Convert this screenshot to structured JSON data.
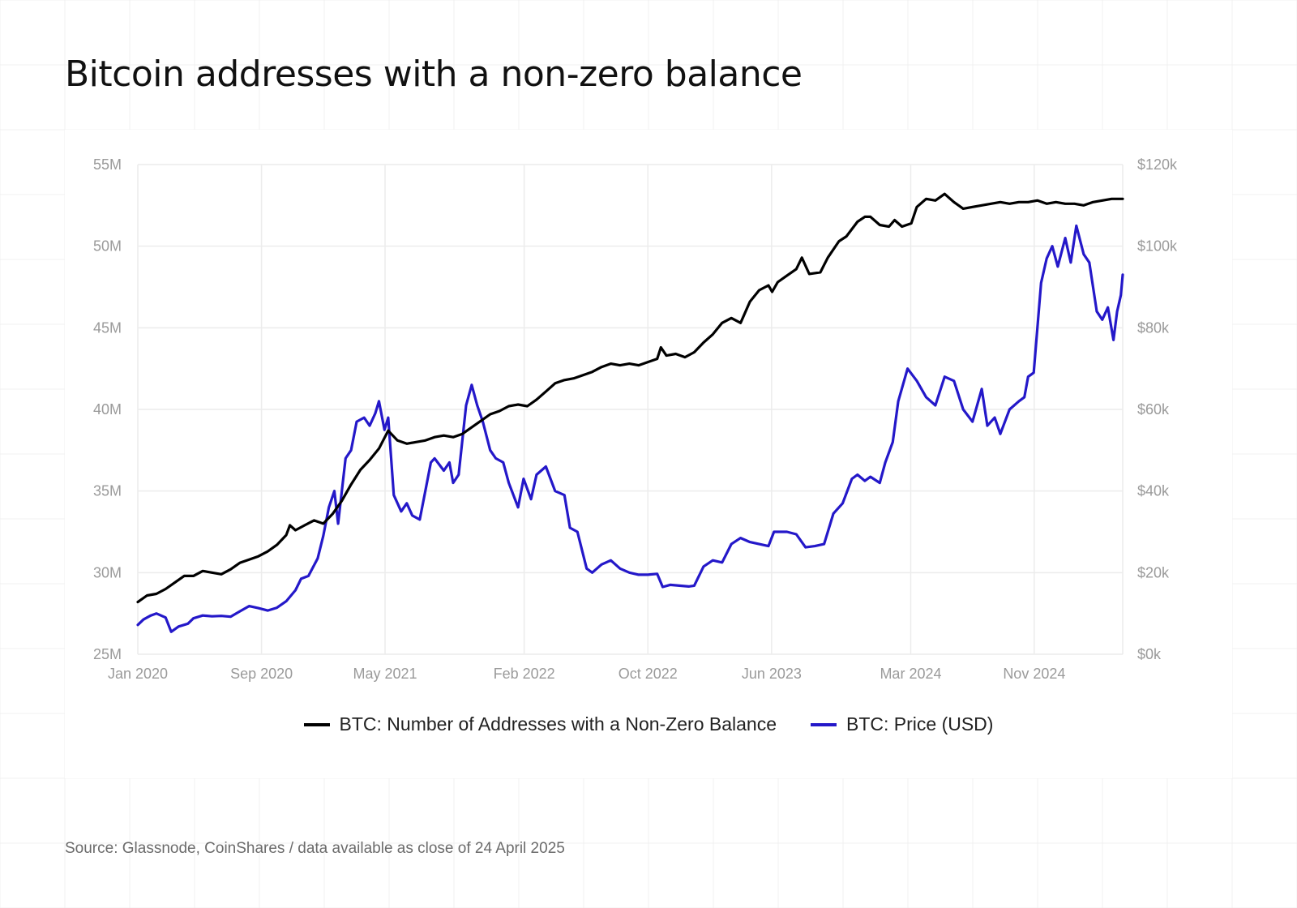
{
  "title": "Bitcoin addresses with a non-zero balance",
  "source": "Source: Glassnode, CoinShares / data available as close of 24 April 2025",
  "chart_data": {
    "type": "line",
    "title": "Bitcoin addresses with a non-zero balance",
    "x_ticks": [
      "Jan 2020",
      "Sep 2020",
      "May 2021",
      "Feb 2022",
      "Oct 2022",
      "Jun 2023",
      "Mar 2024",
      "Nov 2024"
    ],
    "x_tick_positions": [
      2020.0,
      2020.667,
      2021.333,
      2022.083,
      2022.75,
      2023.417,
      2024.167,
      2024.833
    ],
    "xlim": [
      2020.0,
      2025.31
    ],
    "y_left": {
      "ticks": [
        "25M",
        "30M",
        "35M",
        "40M",
        "45M",
        "50M",
        "55M"
      ],
      "ylim": [
        25,
        55
      ]
    },
    "y_right": {
      "ticks": [
        "$0k",
        "$20k",
        "$40k",
        "$60k",
        "$80k",
        "$100k",
        "$120k"
      ],
      "ylim": [
        0,
        120
      ]
    },
    "grid": true,
    "legend_position": "bottom",
    "series": [
      {
        "name": "BTC: Number of Addresses with a Non-Zero Balance",
        "axis": "left",
        "unit": "M",
        "color": "#000000",
        "points": [
          [
            2020.0,
            28.2
          ],
          [
            2020.05,
            28.6
          ],
          [
            2020.1,
            28.7
          ],
          [
            2020.15,
            29.0
          ],
          [
            2020.2,
            29.4
          ],
          [
            2020.25,
            29.8
          ],
          [
            2020.3,
            29.8
          ],
          [
            2020.35,
            30.1
          ],
          [
            2020.4,
            30.0
          ],
          [
            2020.45,
            29.9
          ],
          [
            2020.5,
            30.2
          ],
          [
            2020.55,
            30.6
          ],
          [
            2020.6,
            30.8
          ],
          [
            2020.65,
            31.0
          ],
          [
            2020.7,
            31.3
          ],
          [
            2020.75,
            31.7
          ],
          [
            2020.8,
            32.3
          ],
          [
            2020.82,
            32.9
          ],
          [
            2020.85,
            32.6
          ],
          [
            2020.9,
            32.9
          ],
          [
            2020.95,
            33.2
          ],
          [
            2021.0,
            33.0
          ],
          [
            2021.05,
            33.6
          ],
          [
            2021.1,
            34.4
          ],
          [
            2021.15,
            35.4
          ],
          [
            2021.2,
            36.3
          ],
          [
            2021.25,
            36.9
          ],
          [
            2021.3,
            37.6
          ],
          [
            2021.35,
            38.7
          ],
          [
            2021.4,
            38.1
          ],
          [
            2021.45,
            37.9
          ],
          [
            2021.5,
            38.0
          ],
          [
            2021.55,
            38.1
          ],
          [
            2021.6,
            38.3
          ],
          [
            2021.65,
            38.4
          ],
          [
            2021.7,
            38.3
          ],
          [
            2021.75,
            38.5
          ],
          [
            2021.8,
            38.9
          ],
          [
            2021.85,
            39.3
          ],
          [
            2021.9,
            39.7
          ],
          [
            2021.95,
            39.9
          ],
          [
            2022.0,
            40.2
          ],
          [
            2022.05,
            40.3
          ],
          [
            2022.1,
            40.2
          ],
          [
            2022.15,
            40.6
          ],
          [
            2022.2,
            41.1
          ],
          [
            2022.25,
            41.6
          ],
          [
            2022.3,
            41.8
          ],
          [
            2022.35,
            41.9
          ],
          [
            2022.4,
            42.1
          ],
          [
            2022.45,
            42.3
          ],
          [
            2022.5,
            42.6
          ],
          [
            2022.55,
            42.8
          ],
          [
            2022.6,
            42.7
          ],
          [
            2022.65,
            42.8
          ],
          [
            2022.7,
            42.7
          ],
          [
            2022.75,
            42.9
          ],
          [
            2022.8,
            43.1
          ],
          [
            2022.82,
            43.8
          ],
          [
            2022.85,
            43.3
          ],
          [
            2022.9,
            43.4
          ],
          [
            2022.95,
            43.2
          ],
          [
            2023.0,
            43.5
          ],
          [
            2023.05,
            44.1
          ],
          [
            2023.1,
            44.6
          ],
          [
            2023.15,
            45.3
          ],
          [
            2023.2,
            45.6
          ],
          [
            2023.25,
            45.3
          ],
          [
            2023.3,
            46.6
          ],
          [
            2023.35,
            47.3
          ],
          [
            2023.4,
            47.6
          ],
          [
            2023.42,
            47.2
          ],
          [
            2023.45,
            47.8
          ],
          [
            2023.5,
            48.2
          ],
          [
            2023.55,
            48.6
          ],
          [
            2023.58,
            49.3
          ],
          [
            2023.62,
            48.3
          ],
          [
            2023.68,
            48.4
          ],
          [
            2023.72,
            49.3
          ],
          [
            2023.78,
            50.3
          ],
          [
            2023.82,
            50.6
          ],
          [
            2023.88,
            51.5
          ],
          [
            2023.92,
            51.8
          ],
          [
            2023.95,
            51.8
          ],
          [
            2024.0,
            51.3
          ],
          [
            2024.05,
            51.2
          ],
          [
            2024.08,
            51.6
          ],
          [
            2024.12,
            51.2
          ],
          [
            2024.17,
            51.4
          ],
          [
            2024.2,
            52.4
          ],
          [
            2024.25,
            52.9
          ],
          [
            2024.3,
            52.8
          ],
          [
            2024.35,
            53.2
          ],
          [
            2024.4,
            52.7
          ],
          [
            2024.45,
            52.3
          ],
          [
            2024.5,
            52.4
          ],
          [
            2024.55,
            52.5
          ],
          [
            2024.6,
            52.6
          ],
          [
            2024.65,
            52.7
          ],
          [
            2024.7,
            52.6
          ],
          [
            2024.75,
            52.7
          ],
          [
            2024.8,
            52.7
          ],
          [
            2024.85,
            52.8
          ],
          [
            2024.9,
            52.6
          ],
          [
            2024.95,
            52.7
          ],
          [
            2025.0,
            52.6
          ],
          [
            2025.05,
            52.6
          ],
          [
            2025.1,
            52.5
          ],
          [
            2025.15,
            52.7
          ],
          [
            2025.2,
            52.8
          ],
          [
            2025.25,
            52.9
          ],
          [
            2025.31,
            52.9
          ]
        ]
      },
      {
        "name": "BTC: Price (USD)",
        "axis": "right",
        "unit": "k",
        "color": "#2418c9",
        "points": [
          [
            2020.0,
            7.2
          ],
          [
            2020.03,
            8.5
          ],
          [
            2020.07,
            9.5
          ],
          [
            2020.1,
            10.0
          ],
          [
            2020.15,
            9.0
          ],
          [
            2020.18,
            5.5
          ],
          [
            2020.22,
            6.8
          ],
          [
            2020.27,
            7.5
          ],
          [
            2020.3,
            8.8
          ],
          [
            2020.35,
            9.5
          ],
          [
            2020.4,
            9.3
          ],
          [
            2020.45,
            9.4
          ],
          [
            2020.5,
            9.2
          ],
          [
            2020.55,
            10.5
          ],
          [
            2020.6,
            11.8
          ],
          [
            2020.65,
            11.3
          ],
          [
            2020.7,
            10.7
          ],
          [
            2020.75,
            11.4
          ],
          [
            2020.8,
            13.0
          ],
          [
            2020.85,
            15.7
          ],
          [
            2020.88,
            18.5
          ],
          [
            2020.92,
            19.2
          ],
          [
            2020.97,
            23.5
          ],
          [
            2021.0,
            29.0
          ],
          [
            2021.03,
            36.0
          ],
          [
            2021.06,
            40.0
          ],
          [
            2021.08,
            32.0
          ],
          [
            2021.12,
            48.0
          ],
          [
            2021.15,
            50.0
          ],
          [
            2021.18,
            57.0
          ],
          [
            2021.22,
            58.0
          ],
          [
            2021.25,
            56.0
          ],
          [
            2021.28,
            59.0
          ],
          [
            2021.3,
            62.0
          ],
          [
            2021.33,
            55.0
          ],
          [
            2021.35,
            58.0
          ],
          [
            2021.38,
            39.0
          ],
          [
            2021.42,
            35.0
          ],
          [
            2021.45,
            37.0
          ],
          [
            2021.48,
            34.0
          ],
          [
            2021.52,
            33.0
          ],
          [
            2021.55,
            40.0
          ],
          [
            2021.58,
            47.0
          ],
          [
            2021.6,
            48.0
          ],
          [
            2021.65,
            45.0
          ],
          [
            2021.68,
            47.0
          ],
          [
            2021.7,
            42.0
          ],
          [
            2021.73,
            44.0
          ],
          [
            2021.77,
            61.0
          ],
          [
            2021.8,
            66.0
          ],
          [
            2021.83,
            61.0
          ],
          [
            2021.86,
            57.0
          ],
          [
            2021.9,
            50.0
          ],
          [
            2021.93,
            48.0
          ],
          [
            2021.97,
            47.0
          ],
          [
            2022.0,
            42.0
          ],
          [
            2022.05,
            36.0
          ],
          [
            2022.08,
            43.0
          ],
          [
            2022.12,
            38.0
          ],
          [
            2022.15,
            44.0
          ],
          [
            2022.2,
            46.0
          ],
          [
            2022.25,
            40.0
          ],
          [
            2022.3,
            39.0
          ],
          [
            2022.33,
            31.0
          ],
          [
            2022.37,
            30.0
          ],
          [
            2022.42,
            21.0
          ],
          [
            2022.45,
            20.0
          ],
          [
            2022.5,
            22.0
          ],
          [
            2022.55,
            23.0
          ],
          [
            2022.6,
            21.0
          ],
          [
            2022.65,
            20.0
          ],
          [
            2022.7,
            19.5
          ],
          [
            2022.75,
            19.5
          ],
          [
            2022.8,
            19.7
          ],
          [
            2022.83,
            16.5
          ],
          [
            2022.87,
            17.0
          ],
          [
            2022.92,
            16.8
          ],
          [
            2022.97,
            16.6
          ],
          [
            2023.0,
            16.8
          ],
          [
            2023.05,
            21.5
          ],
          [
            2023.1,
            23.0
          ],
          [
            2023.15,
            22.5
          ],
          [
            2023.2,
            27.0
          ],
          [
            2023.25,
            28.5
          ],
          [
            2023.3,
            27.5
          ],
          [
            2023.35,
            27.0
          ],
          [
            2023.4,
            26.5
          ],
          [
            2023.43,
            30.0
          ],
          [
            2023.5,
            30.0
          ],
          [
            2023.55,
            29.4
          ],
          [
            2023.6,
            26.2
          ],
          [
            2023.65,
            26.5
          ],
          [
            2023.7,
            27.0
          ],
          [
            2023.75,
            34.5
          ],
          [
            2023.8,
            37.0
          ],
          [
            2023.85,
            43.0
          ],
          [
            2023.88,
            44.0
          ],
          [
            2023.92,
            42.5
          ],
          [
            2023.95,
            43.5
          ],
          [
            2024.0,
            42.0
          ],
          [
            2024.03,
            47.0
          ],
          [
            2024.07,
            52.0
          ],
          [
            2024.1,
            62.0
          ],
          [
            2024.15,
            70.0
          ],
          [
            2024.2,
            67.0
          ],
          [
            2024.25,
            63.0
          ],
          [
            2024.3,
            61.0
          ],
          [
            2024.35,
            68.0
          ],
          [
            2024.4,
            67.0
          ],
          [
            2024.45,
            60.0
          ],
          [
            2024.5,
            57.0
          ],
          [
            2024.55,
            65.0
          ],
          [
            2024.58,
            56.0
          ],
          [
            2024.62,
            58.0
          ],
          [
            2024.65,
            54.0
          ],
          [
            2024.7,
            60.0
          ],
          [
            2024.75,
            62.0
          ],
          [
            2024.78,
            63.0
          ],
          [
            2024.8,
            68.0
          ],
          [
            2024.83,
            69.0
          ],
          [
            2024.87,
            91.0
          ],
          [
            2024.9,
            97.0
          ],
          [
            2024.93,
            100.0
          ],
          [
            2024.96,
            95.0
          ],
          [
            2025.0,
            102.0
          ],
          [
            2025.03,
            96.0
          ],
          [
            2025.06,
            105.0
          ],
          [
            2025.1,
            98.0
          ],
          [
            2025.13,
            96.0
          ],
          [
            2025.17,
            84.0
          ],
          [
            2025.2,
            82.0
          ],
          [
            2025.23,
            85.0
          ],
          [
            2025.26,
            77.0
          ],
          [
            2025.28,
            84.0
          ],
          [
            2025.3,
            88.0
          ],
          [
            2025.31,
            93.0
          ]
        ]
      }
    ]
  }
}
